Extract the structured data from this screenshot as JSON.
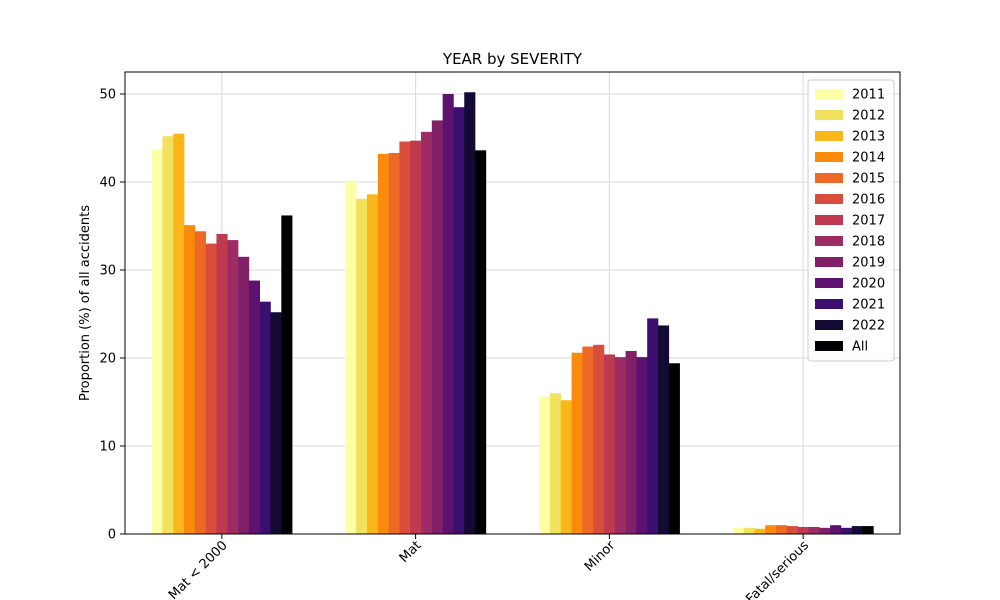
{
  "chart_data": {
    "type": "bar",
    "title": "YEAR by SEVERITY",
    "xlabel": "",
    "ylabel": "Proportion (%) of all accidents",
    "ylim": [
      0,
      52.5
    ],
    "yticks": [
      0,
      10,
      20,
      30,
      40,
      50
    ],
    "grid": true,
    "legend_position": "top-right",
    "categories": [
      "Mat < 2000",
      "Mat",
      "Minor",
      "Fatal/serious"
    ],
    "series": [
      {
        "name": "2011",
        "color": "#fcffa4",
        "values": [
          43.7,
          40.0,
          15.6,
          0.7
        ]
      },
      {
        "name": "2012",
        "color": "#f2e15c",
        "values": [
          45.2,
          38.1,
          16.0,
          0.7
        ]
      },
      {
        "name": "2013",
        "color": "#fbb61a",
        "values": [
          45.5,
          38.6,
          15.2,
          0.6
        ]
      },
      {
        "name": "2014",
        "color": "#f88a0c",
        "values": [
          35.1,
          43.2,
          20.6,
          1.0
        ]
      },
      {
        "name": "2015",
        "color": "#ed6925",
        "values": [
          34.4,
          43.3,
          21.3,
          1.0
        ]
      },
      {
        "name": "2016",
        "color": "#d94d3d",
        "values": [
          33.0,
          44.6,
          21.5,
          0.9
        ]
      },
      {
        "name": "2017",
        "color": "#c03a4f",
        "values": [
          34.1,
          44.7,
          20.4,
          0.8
        ]
      },
      {
        "name": "2018",
        "color": "#9c2c63",
        "values": [
          33.4,
          45.7,
          20.1,
          0.8
        ]
      },
      {
        "name": "2019",
        "color": "#822067",
        "values": [
          31.5,
          47.0,
          20.8,
          0.7
        ]
      },
      {
        "name": "2020",
        "color": "#5c126e",
        "values": [
          28.8,
          50.0,
          20.1,
          1.0
        ]
      },
      {
        "name": "2021",
        "color": "#3b0f6f",
        "values": [
          26.4,
          48.5,
          24.5,
          0.7
        ]
      },
      {
        "name": "2022",
        "color": "#140b35",
        "values": [
          25.2,
          50.2,
          23.7,
          0.9
        ]
      },
      {
        "name": "All",
        "color": "#000004",
        "values": [
          36.2,
          43.6,
          19.4,
          0.9
        ]
      }
    ]
  }
}
